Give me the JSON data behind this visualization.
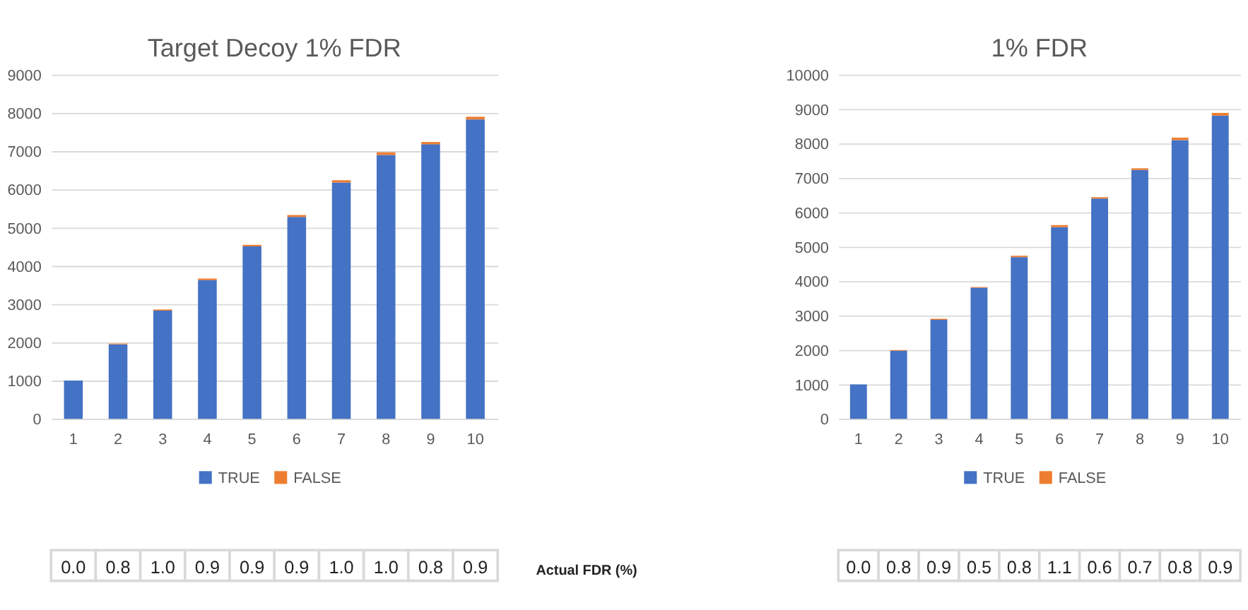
{
  "chart_data": [
    {
      "type": "bar",
      "title": "Target Decoy 1% FDR",
      "stacked": true,
      "categories": [
        "1",
        "2",
        "3",
        "4",
        "5",
        "6",
        "7",
        "8",
        "9",
        "10"
      ],
      "series": [
        {
          "name": "TRUE",
          "color": "#4472c4",
          "values": [
            1000,
            1950,
            2830,
            3630,
            4510,
            5280,
            6180,
            6900,
            7180,
            7830
          ]
        },
        {
          "name": "FALSE",
          "color": "#ed7d31",
          "values": [
            0,
            20,
            30,
            40,
            40,
            50,
            60,
            70,
            60,
            70
          ]
        }
      ],
      "ylim": [
        0,
        9000
      ],
      "yticks": [
        0,
        1000,
        2000,
        3000,
        4000,
        5000,
        6000,
        7000,
        8000,
        9000
      ],
      "grid": "y",
      "legend": "bottom",
      "annotations": [
        "0.0",
        "0.8",
        "1.0",
        "0.9",
        "0.9",
        "0.9",
        "1.0",
        "1.0",
        "0.8",
        "0.9",
        "Actual FDR (%)"
      ]
    },
    {
      "type": "bar",
      "title": "1% FDR",
      "stacked": true,
      "categories": [
        "1",
        "2",
        "3",
        "4",
        "5",
        "6",
        "7",
        "8",
        "9",
        "10"
      ],
      "series": [
        {
          "name": "TRUE",
          "color": "#4472c4",
          "values": [
            1000,
            1980,
            2880,
            3810,
            4700,
            5570,
            6400,
            7230,
            8100,
            8810
          ]
        },
        {
          "name": "FALSE",
          "color": "#ed7d31",
          "values": [
            0,
            20,
            30,
            20,
            40,
            60,
            40,
            50,
            70,
            80
          ]
        }
      ],
      "ylim": [
        0,
        10000
      ],
      "yticks": [
        0,
        1000,
        2000,
        3000,
        4000,
        5000,
        6000,
        7000,
        8000,
        9000,
        10000
      ],
      "grid": "y",
      "legend": "bottom",
      "annotations": [
        "0.0",
        "0.8",
        "0.9",
        "0.5",
        "0.8",
        "1.1",
        "0.6",
        "0.7",
        "0.8",
        "0.9"
      ]
    }
  ]
}
